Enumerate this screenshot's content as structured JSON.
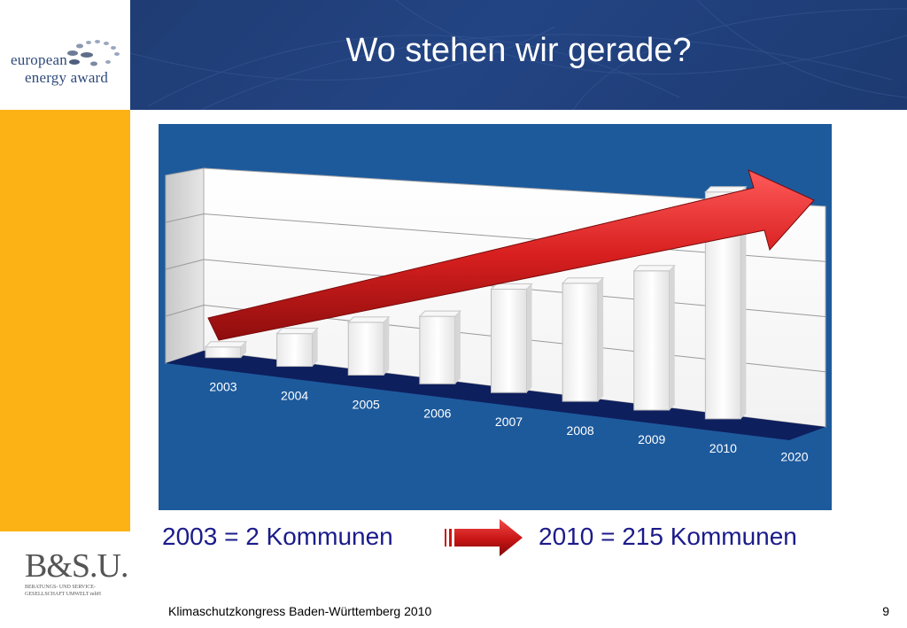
{
  "header": {
    "title": "Wo stehen wir gerade?"
  },
  "logo": {
    "line1": "european",
    "line2": "energy award"
  },
  "chart_data": {
    "type": "bar",
    "categories": [
      "2003",
      "2004",
      "2005",
      "2006",
      "2007",
      "2008",
      "2009",
      "2010",
      "2020"
    ],
    "values": [
      2,
      31,
      50,
      64,
      98,
      112,
      132,
      215,
      null
    ],
    "ylim": [
      0,
      220
    ],
    "grid": true,
    "trend_arrow": true
  },
  "captions": {
    "left": "2003 = 2 Kommunen",
    "right": "2010 = 215 Kommunen"
  },
  "bsu": {
    "name": "B&S.U.",
    "subtitle": "BERATUNGS- UND SERVICE-GESELLSCHAFT UMWELT mbH"
  },
  "footer": {
    "event": "Klimaschutzkongress Baden-Württemberg 2010",
    "page_number": "9"
  },
  "colors": {
    "header_blue": "#1f3c74",
    "side_orange": "#fcb215",
    "chart_bg": "#1d5a9c",
    "floor": "#0e1f5e",
    "caption_text": "#1b1b8a",
    "arrow_red": "#d81f1f"
  }
}
